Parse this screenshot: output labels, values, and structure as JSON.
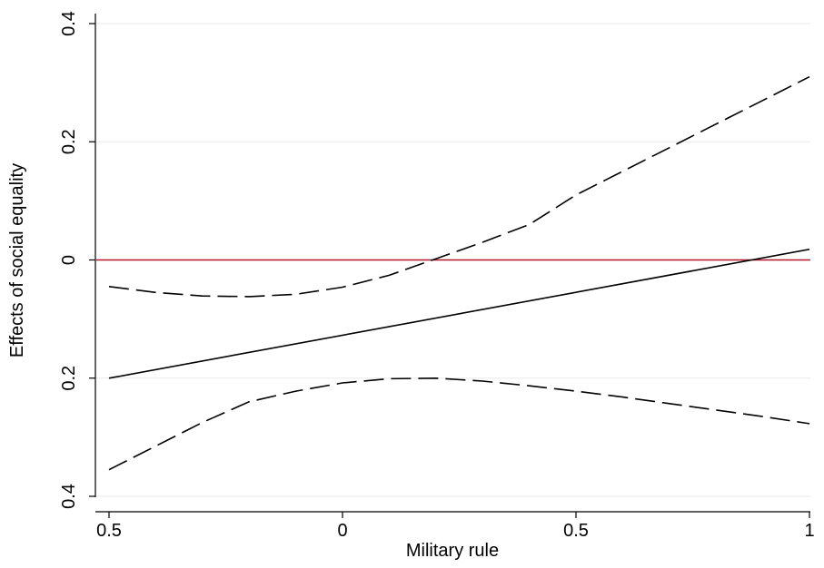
{
  "chart_data": {
    "type": "line",
    "title": "",
    "xlabel": "Military rule",
    "ylabel": "Effects of social equality",
    "xlim": [
      -0.5,
      1
    ],
    "ylim": [
      -0.4,
      0.4
    ],
    "x_ticks": [
      {
        "value": -0.5,
        "label": "0.5"
      },
      {
        "value": 0,
        "label": "0"
      },
      {
        "value": 0.5,
        "label": "0.5"
      },
      {
        "value": 1,
        "label": "1"
      }
    ],
    "y_ticks": [
      {
        "value": -0.4,
        "label": "0.4"
      },
      {
        "value": -0.2,
        "label": "0.2"
      },
      {
        "value": 0,
        "label": "0"
      },
      {
        "value": 0.2,
        "label": "0.2"
      },
      {
        "value": 0.4,
        "label": "0.4"
      }
    ],
    "grid": true,
    "reference_line": {
      "y": 0,
      "color": "#b2182b"
    },
    "series": [
      {
        "style": "solid",
        "color": "#000000",
        "x": [
          -0.5,
          1.0
        ],
        "y": [
          -0.2,
          0.018
        ]
      },
      {
        "style": "dashed",
        "color": "#000000",
        "x": [
          -0.5,
          -0.4,
          -0.3,
          -0.2,
          -0.1,
          0.0,
          0.1,
          0.2,
          0.3,
          0.4,
          0.5,
          0.6,
          0.7,
          0.8,
          0.9,
          1.0
        ],
        "y": [
          -0.045,
          -0.055,
          -0.061,
          -0.062,
          -0.058,
          -0.046,
          -0.026,
          0.002,
          0.03,
          0.06,
          0.11,
          0.15,
          0.19,
          0.23,
          0.27,
          0.31
        ]
      },
      {
        "style": "dashed",
        "color": "#000000",
        "x": [
          -0.5,
          -0.4,
          -0.3,
          -0.2,
          -0.1,
          0.0,
          0.1,
          0.2,
          0.3,
          0.4,
          0.5,
          0.6,
          0.7,
          0.8,
          0.9,
          1.0
        ],
        "y": [
          -0.355,
          -0.315,
          -0.275,
          -0.24,
          -0.222,
          -0.208,
          -0.201,
          -0.2,
          -0.205,
          -0.213,
          -0.222,
          -0.232,
          -0.243,
          -0.254,
          -0.265,
          -0.277
        ]
      }
    ]
  }
}
